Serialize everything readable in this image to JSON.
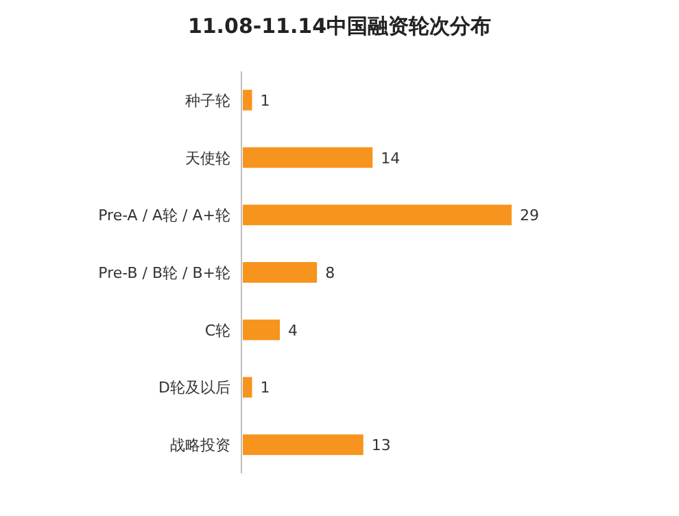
{
  "chart_data": {
    "type": "bar",
    "orientation": "horizontal",
    "title": "11.08-11.14中国融资轮次分布",
    "categories": [
      "种子轮",
      "天使轮",
      "Pre-A / A轮 / A+轮",
      "Pre-B / B轮 / B+轮",
      "C轮",
      "D轮及以后",
      "战略投资"
    ],
    "values": [
      1,
      14,
      29,
      8,
      4,
      1,
      13
    ],
    "color": "#f7941d",
    "data_labels": true
  }
}
